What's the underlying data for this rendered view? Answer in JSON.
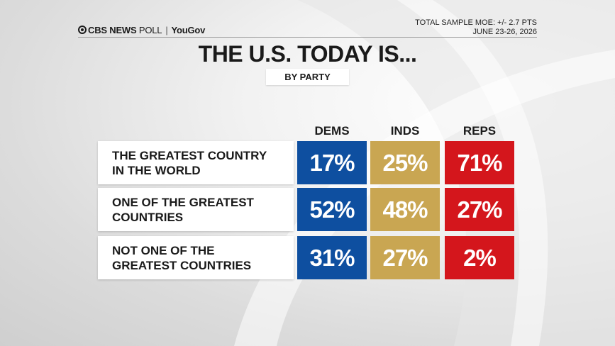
{
  "brand": {
    "network": "CBS NEWS",
    "poll": "POLL",
    "partner": "YouGov"
  },
  "meta": {
    "moe": "TOTAL SAMPLE MOE: +/- 2.7 PTS",
    "dates": "JUNE 23-26, 2026"
  },
  "colors": {
    "dems": "#0e4fa0",
    "inds": "#c9a652",
    "reps": "#d4161c"
  },
  "chart_data": {
    "type": "table",
    "title": "THE U.S. TODAY IS...",
    "subtitle": "BY PARTY",
    "columns": [
      "DEMS",
      "INDS",
      "REPS"
    ],
    "rows": [
      {
        "label": "THE GREATEST COUNTRY\nIN THE WORLD",
        "values": [
          "17%",
          "25%",
          "71%"
        ]
      },
      {
        "label": "ONE OF THE GREATEST\nCOUNTRIES",
        "values": [
          "52%",
          "48%",
          "27%"
        ]
      },
      {
        "label": "NOT ONE OF THE\nGREATEST COUNTRIES",
        "values": [
          "31%",
          "27%",
          "2%"
        ]
      }
    ]
  }
}
